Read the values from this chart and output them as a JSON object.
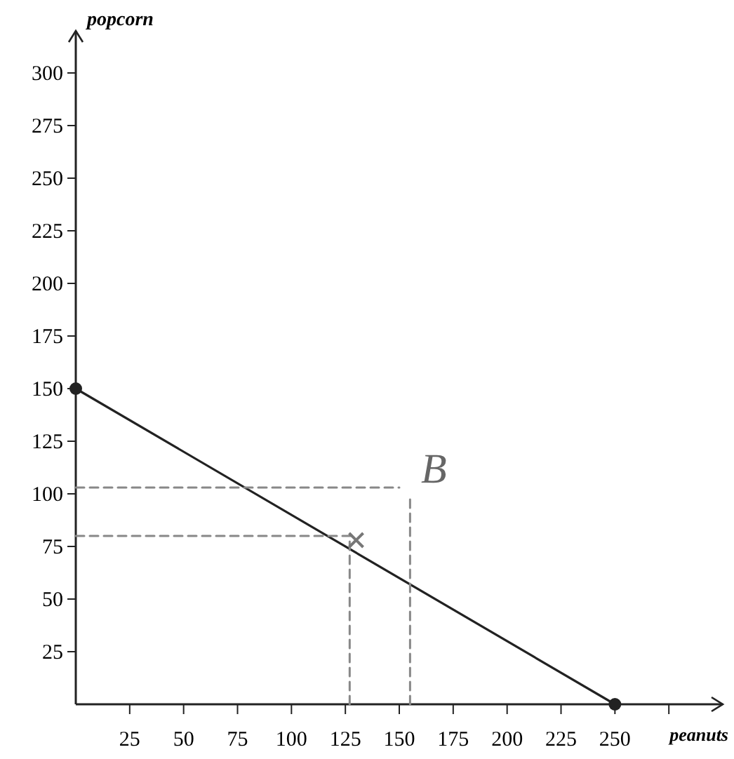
{
  "chart_data": {
    "type": "line",
    "xlabel": "peanuts",
    "ylabel": "popcorn",
    "xlim": [
      0,
      300
    ],
    "ylim": [
      0,
      320
    ],
    "xticks": [
      25,
      50,
      75,
      100,
      125,
      150,
      175,
      200,
      225,
      250,
      {
        "value": 275,
        "label": null
      }
    ],
    "yticks": [
      25,
      50,
      75,
      100,
      125,
      150,
      175,
      200,
      225,
      250,
      275,
      300
    ],
    "grid": false,
    "series": [
      {
        "color": "#222222",
        "x": [
          0,
          250
        ],
        "values": [
          150,
          0
        ],
        "marker": "circle",
        "line_style": "solid"
      },
      {
        "color": "#888888",
        "x": [
          0,
          150
        ],
        "values": [
          103,
          103
        ],
        "marker": "none",
        "line_style": "dashed"
      },
      {
        "color": "#888888",
        "x": [
          0,
          130
        ],
        "values": [
          80,
          80
        ],
        "marker": "none",
        "line_style": "dashed"
      },
      {
        "color": "#888888",
        "x": [
          127,
          127
        ],
        "values": [
          0,
          78
        ],
        "marker": "none",
        "line_style": "dashed"
      },
      {
        "color": "#888888",
        "x": [
          155,
          155
        ],
        "values": [
          0,
          100
        ],
        "marker": "none",
        "line_style": "dashed"
      },
      {
        "type": "scatter",
        "color": "#777777",
        "x": [
          130
        ],
        "values": [
          78
        ],
        "marker": "cross"
      }
    ],
    "annotations": [
      "B"
    ]
  }
}
